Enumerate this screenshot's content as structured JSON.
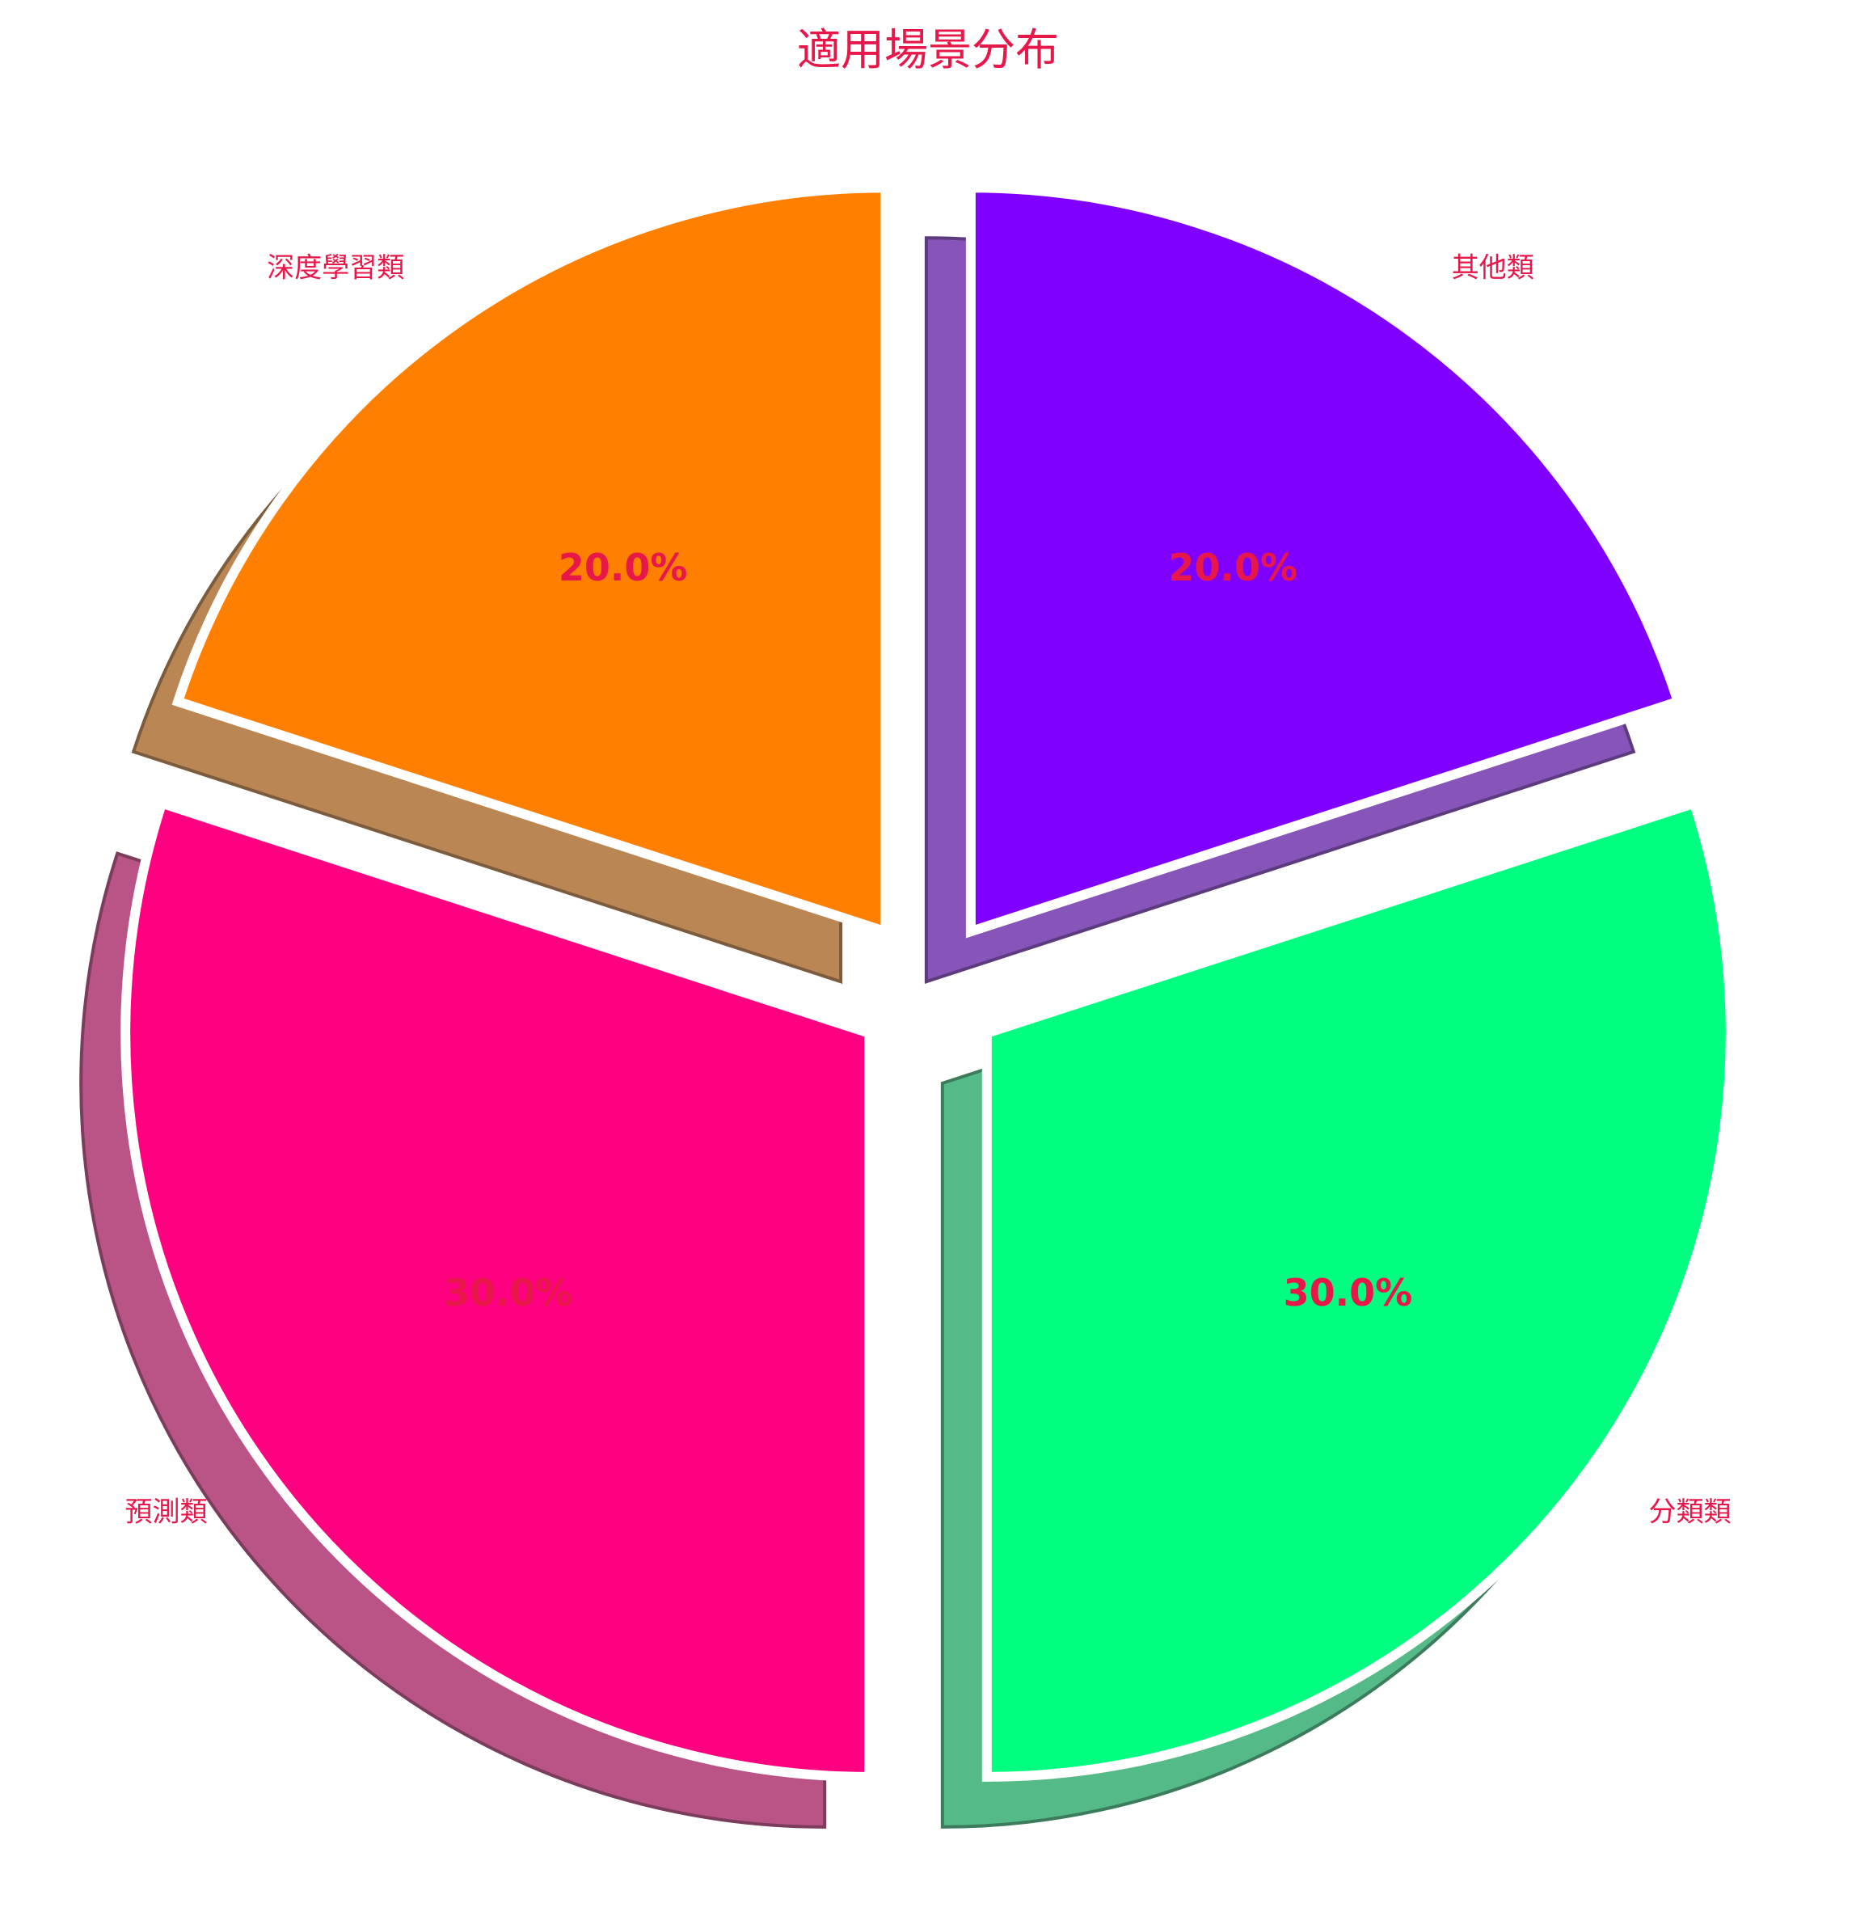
{
  "chart_data": {
    "type": "pie",
    "title": "適用場景分布",
    "slices": [
      {
        "label": "深度學習類",
        "value": 20,
        "percent_label": "20.0%",
        "color": "#ff7f00",
        "exploded": true
      },
      {
        "label": "預測類",
        "value": 30,
        "percent_label": "30.0%",
        "color": "#ff0080",
        "exploded": true
      },
      {
        "label": "分類類",
        "value": 30,
        "percent_label": "30.0%",
        "color": "#00ff80",
        "exploded": true
      },
      {
        "label": "其他類",
        "value": 20,
        "percent_label": "20.0%",
        "color": "#8000ff",
        "exploded": true
      }
    ],
    "start_angle_deg": 90,
    "direction": "counterclockwise",
    "shadow": true,
    "label_color": "#e8174a"
  }
}
